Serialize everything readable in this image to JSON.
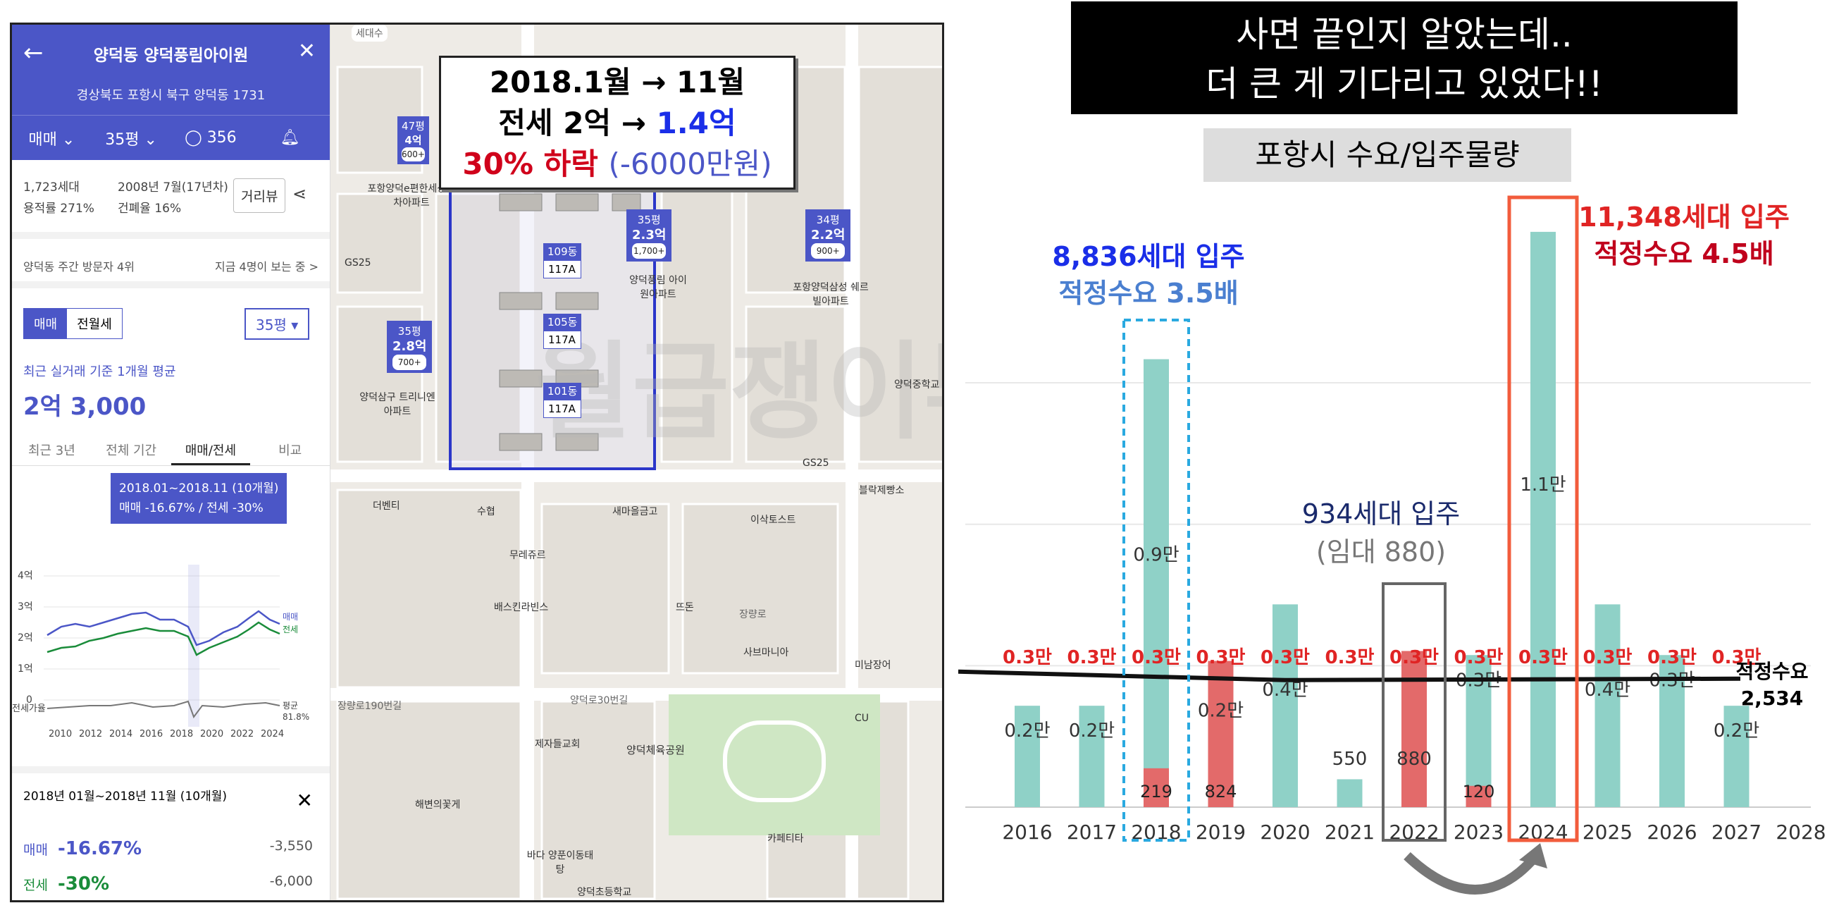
{
  "app": {
    "title": "양덕동 양덕풍림아이원",
    "address": "경상북도 포항시 북구 양덕동 1731",
    "tabs": [
      "매매",
      "35평",
      "356"
    ],
    "info_left": [
      "1,723세대",
      "용적률 271%"
    ],
    "info_right": [
      "2008년 7월(17년차)",
      "건폐율 16%"
    ],
    "street_view": "거리뷰",
    "visit_rank": "양덕동 주간 방문자 4위",
    "visit_now": "지금 4명이 보는 중 >",
    "seg_on": "매매",
    "seg_off": "전월세",
    "size_select": "35평",
    "avg_label": "최근 실거래 기준 1개월 평균",
    "avg_price": "2억 3,000",
    "chart_tabs": [
      "최근 3년",
      "전체 기간",
      "매매/전세",
      "비교"
    ],
    "tooltip_line1": "2018.01~2018.11 (10개월)",
    "tooltip_line2": "매매 -16.67% / 전세 -30%",
    "y_ticks": [
      "4억",
      "3억",
      "2억",
      "1억",
      "0"
    ],
    "legend_sale": "매매",
    "legend_rent": "전세",
    "volume_label": "전세가율",
    "volume_avg": "평균",
    "volume_avg_value": "81.8%",
    "x_ticks": [
      "2010",
      "2012",
      "2014",
      "2016",
      "2018",
      "2020",
      "2022",
      "2024"
    ],
    "range_title": "2018년 01월~2018년 11월 (10개월)",
    "range_sale_label": "매매",
    "range_sale_pct": "-16.67%",
    "range_sale_val": "-3,550",
    "range_rent_label": "전세",
    "range_rent_pct": "-30%",
    "range_rent_val": "-6,000"
  },
  "map": {
    "callout_line1": "2018.1월 → 11월",
    "callout_line2a": "전세 2억 → ",
    "callout_line2b": "1.4억",
    "callout_line3a": "30% 하락 ",
    "callout_line3b": "(-6000만원)",
    "pins": [
      {
        "label": "47평",
        "price": "4억",
        "count": "600+"
      },
      {
        "label": "35평",
        "price": "2.3억",
        "count": "1,700+"
      },
      {
        "label": "34평",
        "price": "2.2억",
        "count": "900+"
      },
      {
        "label": "35평",
        "price": "2.8억",
        "count": "700+"
      }
    ],
    "dongs": [
      "109동",
      "105동",
      "101동"
    ],
    "dong_type": "117A",
    "places": [
      "포항양덕e편한세상 1차아파트",
      "양덕풍림 아이원아파트",
      "포항양덕삼성 쉐르빌아파트",
      "양덕삼구 트리니엔아파트",
      "GS25",
      "GS25",
      "더벤티",
      "수협",
      "새마을금고",
      "이삭토스트",
      "블락제빵소",
      "무레쥬르",
      "배스킨라빈스",
      "뜨돈",
      "사브마니아",
      "미남장어",
      "제자들교회",
      "양덕체육공원",
      "CU",
      "해변의꽃게",
      "바다 양푼이동태탕",
      "카페티타",
      "양덕초등학교",
      "양덕중학교",
      "장량로",
      "양덕로30번길",
      "장량로190번길",
      "세대수"
    ],
    "watermark": "월급쟁이부자들"
  },
  "right": {
    "banner_line1": "사면 끝인지 알았는데..",
    "banner_line2": "더 큰 게 기다리고 있었다!!",
    "subtitle": "포항시 수요/입주물량",
    "ann2018_line1": "8,836세대 입주",
    "ann2018_line2": "적정수요 3.5배",
    "ann2024_line1": "11,348세대 입주",
    "ann2024_line2": "적정수요 4.5배",
    "ann2022_line1": "934세대 입주",
    "ann2022_line2": "(임대 880)",
    "demand_label": "적정수요",
    "demand_value": "2,534"
  },
  "chart_data": {
    "type": "bar",
    "categories": [
      "2016",
      "2017",
      "2018",
      "2019",
      "2020",
      "2021",
      "2022",
      "2023",
      "2024",
      "2025",
      "2026",
      "2027",
      "2028"
    ],
    "series": [
      {
        "values": [
          2000,
          2000,
          8836,
          2400,
          4000,
          550,
          934,
          3000,
          11348,
          4000,
          3000,
          2000,
          0
        ]
      },
      {
        "values": [
          0,
          0,
          219,
          824,
          0,
          0,
          880,
          120,
          0,
          0,
          0,
          0,
          0
        ]
      }
    ],
    "bar_labels": [
      "0.2만",
      "0.2만",
      "0.9만",
      "0.2만",
      "0.4만",
      "550",
      "880",
      "0.3만",
      "1.1만",
      "0.4만",
      "0.3만",
      "0.2만",
      ""
    ],
    "rental_labels": [
      "",
      "",
      "219",
      "824",
      "",
      "",
      "",
      "120",
      "",
      "",
      "",
      "",
      ""
    ],
    "demand_labels": [
      "0.3만",
      "0.3만",
      "0.3만",
      "0.3만",
      "0.3만",
      "0.3만",
      "0.3만",
      "0.3만",
      "0.3만",
      "0.3만",
      "0.3만",
      "0.3만",
      ""
    ],
    "demand": 2534,
    "ylim": [
      0,
      12000
    ],
    "colors": {
      "supply": "#8fd1c7",
      "rental": "#e36a6a",
      "demand_label": "#e02424",
      "line": "#111111"
    }
  }
}
